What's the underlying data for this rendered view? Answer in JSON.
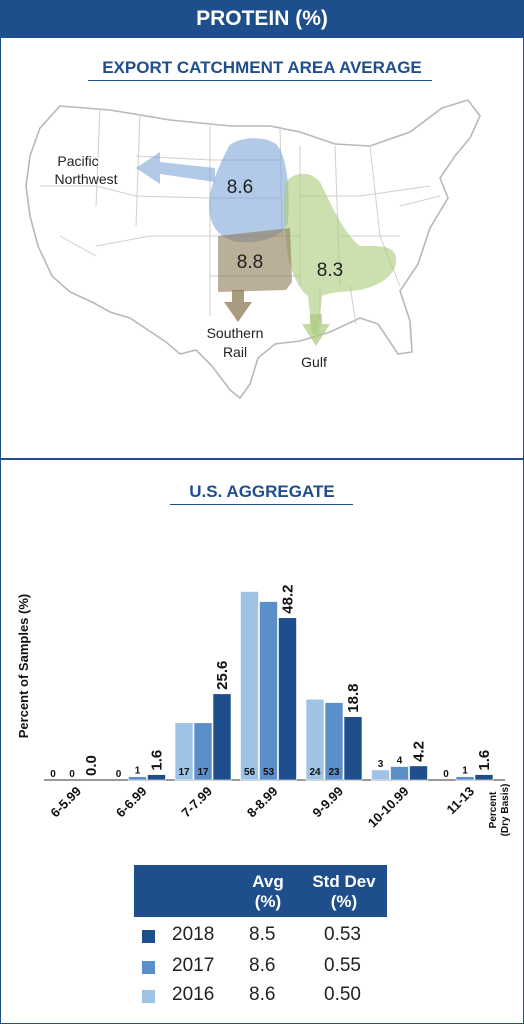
{
  "header": {
    "title": "PROTEIN (%)"
  },
  "map": {
    "title": "EXPORT CATCHMENT AREA AVERAGE",
    "regions": [
      {
        "id": "pnw",
        "value": "8.6",
        "label_lines": [
          "Pacific",
          "Northwest"
        ],
        "color": "#7fa7d9"
      },
      {
        "id": "gulf",
        "value": "8.3",
        "label_lines": [
          "Gulf"
        ],
        "color": "#a9c97a"
      },
      {
        "id": "rail",
        "value": "8.8",
        "label_lines": [
          "Southern",
          "Rail"
        ],
        "color": "#8c7a55"
      }
    ]
  },
  "chart_data": {
    "type": "bar",
    "title": "U.S. AGGREGATE",
    "ylabel": "Percent of Samples (%)",
    "xlabel": "Percent (Dry Basis)",
    "categories": [
      "6-5.99",
      "6-6.99",
      "7-7.99",
      "8-8.99",
      "9-9.99",
      "10-10.99",
      "11-13"
    ],
    "series": [
      {
        "name": "2016",
        "color": "#9fc3e7",
        "values": [
          0,
          0,
          17,
          56,
          24,
          3,
          0
        ]
      },
      {
        "name": "2017",
        "color": "#5b8fc9",
        "values": [
          0,
          1,
          17,
          53,
          23,
          4,
          1
        ]
      },
      {
        "name": "2018",
        "color": "#1f4e8c",
        "values": [
          0.0,
          1.6,
          25.6,
          48.2,
          18.8,
          4.2,
          1.6
        ]
      }
    ],
    "ylim": [
      0,
      60
    ]
  },
  "legend": {
    "headers": {
      "avg": [
        "Avg",
        "(%)"
      ],
      "sd": [
        "Std Dev",
        "(%)"
      ]
    },
    "rows": [
      {
        "year": "2018",
        "avg": "8.5",
        "sd": "0.53",
        "color": "#1f4e8c"
      },
      {
        "year": "2017",
        "avg": "8.6",
        "sd": "0.55",
        "color": "#5b8fc9"
      },
      {
        "year": "2016",
        "avg": "8.6",
        "sd": "0.50",
        "color": "#9fc3e7"
      }
    ]
  }
}
